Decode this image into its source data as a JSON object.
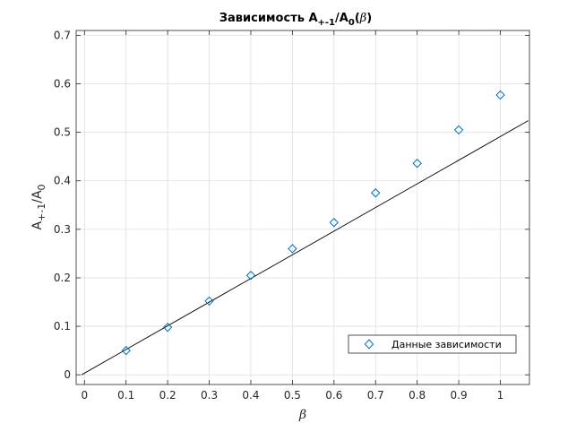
{
  "chart_data": {
    "type": "scatter",
    "title": {
      "main": "Зависимость A",
      "sub1": "+-1",
      "mid": "/A",
      "sub2": "0",
      "tail_open": "(",
      "tail_sym": "β",
      "tail_close": ")"
    },
    "xlabel": "β",
    "ylabel": {
      "main": "A",
      "sub1": "+-1",
      "mid": "/A",
      "sub2": "0"
    },
    "xlim": [
      -0.02,
      1.07
    ],
    "ylim": [
      -0.02,
      0.71
    ],
    "x_ticks": [
      0,
      0.1,
      0.2,
      0.3,
      0.4,
      0.5,
      0.6,
      0.7,
      0.8,
      0.9,
      1
    ],
    "x_tick_labels": [
      "0",
      "0.1",
      "0.2",
      "0.3",
      "0.4",
      "0.5",
      "0.6",
      "0.7",
      "0.8",
      "0.9",
      "1"
    ],
    "y_ticks": [
      0,
      0.1,
      0.2,
      0.3,
      0.4,
      0.5,
      0.6,
      0.7
    ],
    "y_tick_labels": [
      "0",
      "0.1",
      "0.2",
      "0.3",
      "0.4",
      "0.5",
      "0.6",
      "0.7"
    ],
    "grid": true,
    "legend_position": "bottom-right",
    "series": [
      {
        "name": "Данные зависимости",
        "kind": "markers",
        "marker": "diamond",
        "color": "#0072BD",
        "x": [
          0.1,
          0.2,
          0.3,
          0.4,
          0.5,
          0.6,
          0.7,
          0.8,
          0.9,
          1.0
        ],
        "y": [
          0.05,
          0.098,
          0.152,
          0.205,
          0.26,
          0.314,
          0.375,
          0.436,
          0.505,
          0.577
        ]
      },
      {
        "kind": "line",
        "color": "#000000",
        "x": [
          -0.007,
          1.067
        ],
        "y": [
          0.0,
          0.524
        ]
      }
    ]
  }
}
